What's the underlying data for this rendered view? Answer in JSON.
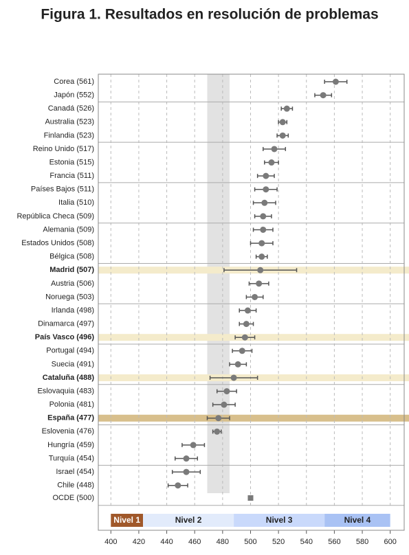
{
  "chart_data": {
    "type": "dotplot",
    "title": "Figura 1. Resultados en resolución de problemas",
    "categories": [
      "Corea (561)",
      "Japón (552)",
      "Canadá (526)",
      "Australia (523)",
      "Finlandia (523)",
      "Reino Unido (517)",
      "Estonia (515)",
      "Francia (511)",
      "Países Bajos (511)",
      "Italia (510)",
      "República Checa (509)",
      "Alemania (509)",
      "Estados Unidos (508)",
      "Bélgica (508)",
      "Madrid (507)",
      "Austria (506)",
      "Noruega (503)",
      "Irlanda (498)",
      "Dinamarca (497)",
      "País Vasco (496)",
      "Portugal (494)",
      "Suecia (491)",
      "Cataluña (488)",
      "Eslovaquia (483)",
      "Polonia (481)",
      "España (477)",
      "Eslovenia (476)",
      "Hungría (459)",
      "Turquía (454)",
      "Israel (454)",
      "Chile (448)"
    ],
    "values": [
      561,
      552,
      526,
      523,
      523,
      517,
      515,
      511,
      511,
      510,
      509,
      509,
      508,
      508,
      507,
      506,
      503,
      498,
      497,
      496,
      494,
      491,
      488,
      483,
      481,
      477,
      476,
      459,
      454,
      454,
      448
    ],
    "errors": [
      8,
      6,
      4,
      3,
      4,
      8,
      5,
      6,
      8,
      8,
      6,
      7,
      8,
      4,
      26,
      7,
      6,
      6,
      5,
      7,
      7,
      6,
      17,
      7,
      8,
      8,
      3,
      8,
      8,
      10,
      7
    ],
    "color": "#7a7a7a",
    "highlight": {
      "light": [
        14,
        19,
        22
      ],
      "dark": [
        25
      ]
    },
    "reference": {
      "label": "OCDE (500)",
      "value": 500
    },
    "band": [
      469,
      485
    ],
    "levels": [
      {
        "name": "Nivel 1",
        "range": [
          400,
          423
        ],
        "color": "#a0582a"
      },
      {
        "name": "Nivel 2",
        "range": [
          423,
          488
        ],
        "color": "#e2ebfb"
      },
      {
        "name": "Nivel 3",
        "range": [
          488,
          553
        ],
        "color": "#c9d9fb"
      },
      {
        "name": "Nivel 4",
        "range": [
          553,
          600
        ],
        "color": "#a9c2f4"
      }
    ],
    "xlim": [
      391,
      610
    ],
    "xticks": [
      400,
      420,
      440,
      460,
      480,
      500,
      520,
      540,
      560,
      580,
      600
    ],
    "grid": true
  }
}
